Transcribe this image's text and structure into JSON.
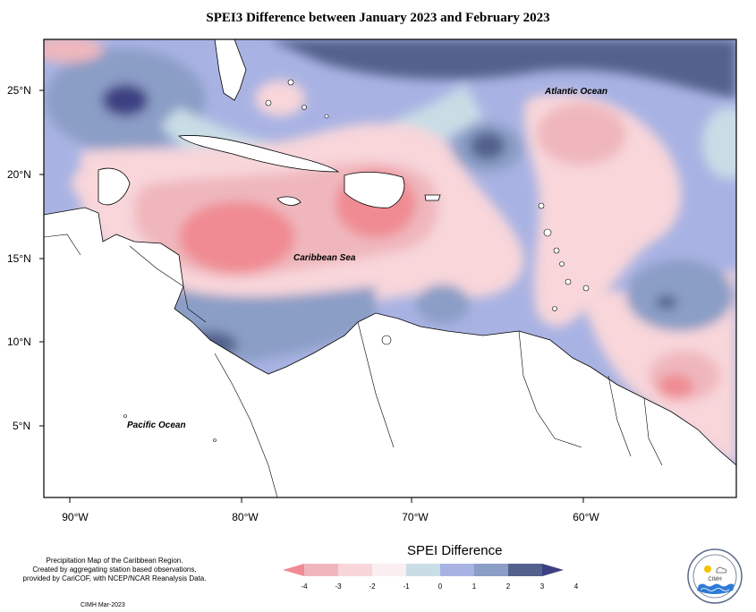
{
  "title": "SPEI3 Difference between January 2023 and February 2023",
  "map": {
    "latitude_labels": [
      "25°N",
      "20°N",
      "15°N",
      "10°N",
      "5°N"
    ],
    "longitude_labels": [
      "90°W",
      "80°W",
      "70°W",
      "60°W"
    ],
    "ocean_labels": {
      "atlantic": "Atlantic Ocean",
      "caribbean": "Caribbean Sea",
      "pacific": "Pacific Ocean"
    }
  },
  "legend": {
    "title": "SPEI Difference",
    "ticks": [
      "-4",
      "-3",
      "-2",
      "-1",
      "0",
      "1",
      "2",
      "3",
      "4"
    ],
    "colors": [
      "#f08b93",
      "#efb7bd",
      "#f8d6da",
      "#fbeef0",
      "#c9dde6",
      "#a9b3e3",
      "#8b9ec6",
      "#53628c",
      "#3e3f83"
    ]
  },
  "credit": {
    "lines": [
      "Precipitation Map of the Caribbean Region.",
      "Created by aggregating station based observations,",
      "provided by CariCOF, with NCEP/NCAR Reanalysis Data."
    ],
    "date": "CIMH Mar-2023"
  },
  "logo": {
    "text": "CIMH",
    "icon": "cimh-logo"
  }
}
